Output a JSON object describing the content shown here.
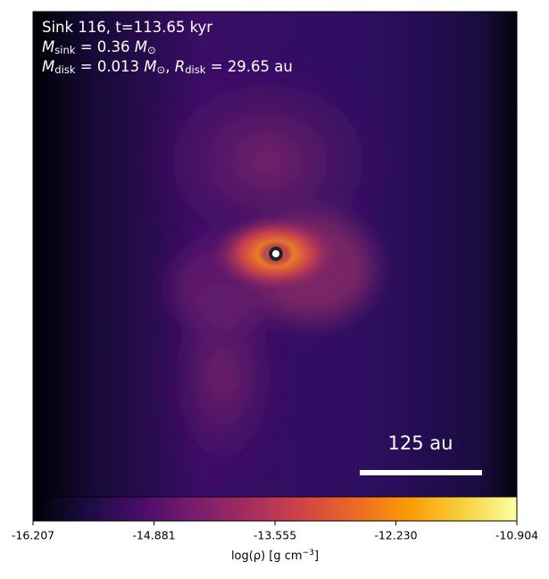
{
  "chart_data": {
    "type": "density-map",
    "annotation_lines": [
      [
        {
          "t": "Sink 116, t=113.65 kyr"
        }
      ],
      [
        {
          "i": "M"
        },
        {
          "sub": "sink"
        },
        {
          "t": " = 0.36 "
        },
        {
          "i": "M"
        },
        {
          "sub": "⊙"
        }
      ],
      [
        {
          "i": "M"
        },
        {
          "sub": "disk"
        },
        {
          "t": " = 0.013 "
        },
        {
          "i": "M"
        },
        {
          "sub": "⊙"
        },
        {
          "t": ", "
        },
        {
          "i": "R"
        },
        {
          "sub": "disk"
        },
        {
          "t": " = 29.65 au"
        }
      ]
    ],
    "scale_bar_label": "125 au",
    "colorbar_label": [
      {
        "t": "log(ρ) [g cm"
      },
      {
        "sup": "−3"
      },
      {
        "t": "]"
      }
    ],
    "clim": [
      -16.207,
      -10.904
    ],
    "cticks": [
      -16.207,
      -14.881,
      -13.555,
      {
        "value": -12.23,
        "label": "-12.230"
      },
      -10.904
    ],
    "colormap": [
      "#000004",
      "#1b0c41",
      "#4a0c6b",
      "#781c6d",
      "#a52c60",
      "#cf4446",
      "#ed6925",
      "#fb9b06",
      "#f7d13d",
      "#fcffa4"
    ]
  }
}
